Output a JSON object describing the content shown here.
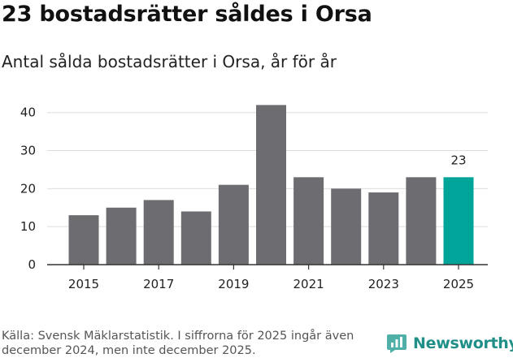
{
  "header": {
    "title": "23 bostadsrätter såldes i Orsa",
    "subtitle": "Antal sålda bostadsrätter i Orsa, år för år"
  },
  "chart_data": {
    "type": "bar",
    "title": "23 bostadsrätter såldes i Orsa",
    "subtitle": "Antal sålda bostadsrätter i Orsa, år för år",
    "categories": [
      "2015",
      "2016",
      "2017",
      "2018",
      "2019",
      "2020",
      "2021",
      "2022",
      "2023",
      "2024",
      "2025"
    ],
    "values": [
      13,
      15,
      17,
      14,
      21,
      42,
      23,
      20,
      19,
      23,
      23
    ],
    "highlight_index": 10,
    "data_labels": [
      {
        "index": 10,
        "text": "23"
      }
    ],
    "x_tick_labels": [
      "2015",
      "2017",
      "2019",
      "2021",
      "2023",
      "2025"
    ],
    "y_ticks": [
      0,
      10,
      20,
      30,
      40
    ],
    "ylim": [
      0,
      44
    ],
    "xlabel": "",
    "ylabel": "",
    "grid": true,
    "colors": {
      "bar": "#6d6c70",
      "highlight": "#00a499",
      "grid": "#dddddd",
      "axis": "#333333"
    }
  },
  "footer": {
    "source": "Källa: Svensk Mäklarstatistik. I siffrorna för 2025 ingår även december 2024, men inte december 2025.",
    "brand": "Newsworthy",
    "brand_color": "#1f8f88",
    "brand_icon": "bar-chart-speech-bubble-icon"
  }
}
